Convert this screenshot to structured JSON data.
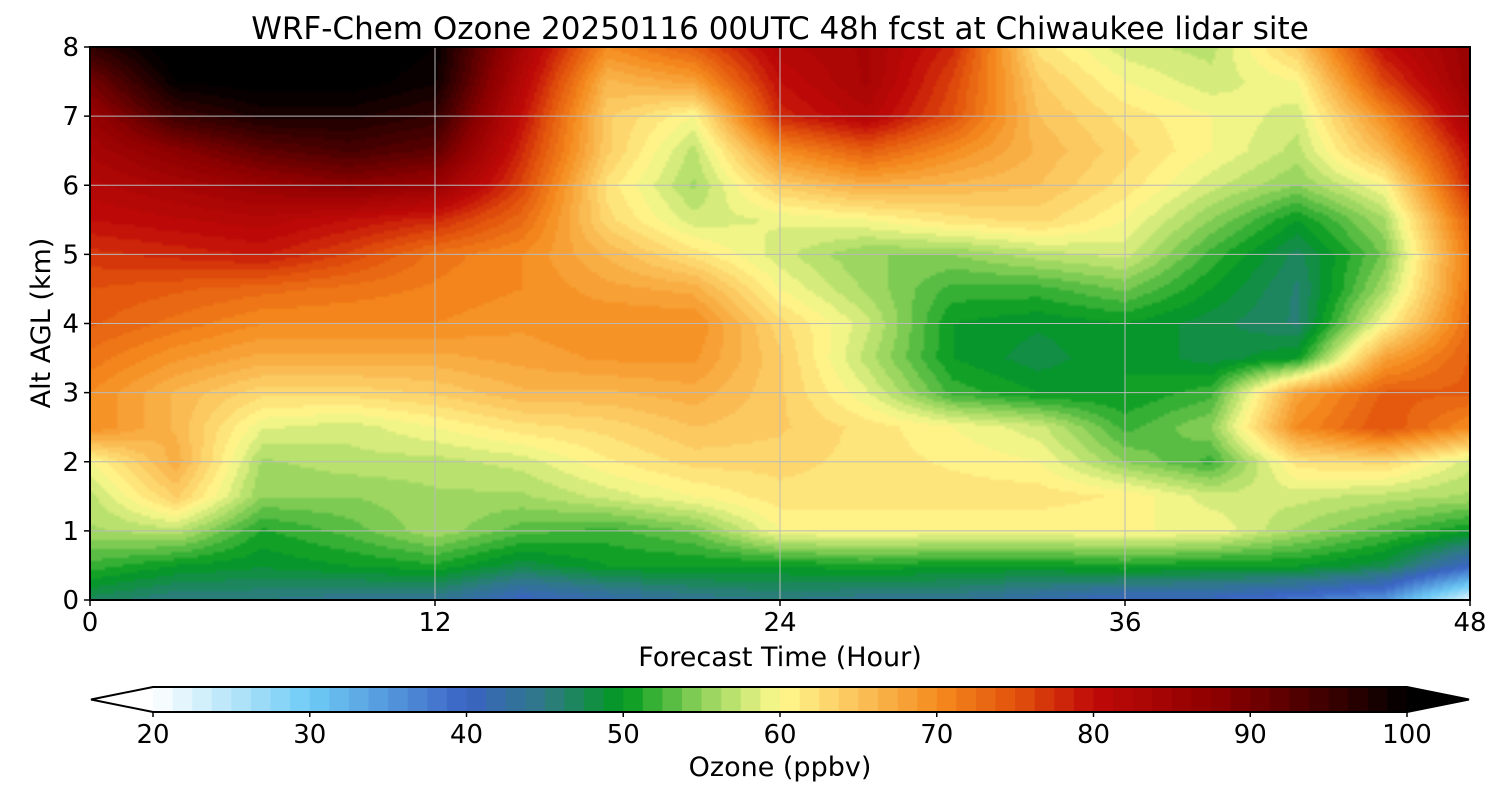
{
  "chart_data": {
    "type": "heatmap",
    "title": "WRF-Chem Ozone  20250116 00UTC 48h fcst at Chiwaukee lidar site",
    "xlabel": "Forecast Time (Hour)",
    "ylabel": "Alt AGL (km)",
    "xlim": [
      0,
      48
    ],
    "ylim": [
      0,
      8
    ],
    "xticks": [
      0,
      12,
      24,
      36,
      48
    ],
    "yticks": [
      0,
      1,
      2,
      3,
      4,
      5,
      6,
      7,
      8
    ],
    "grid": true,
    "x": [
      0,
      3,
      6,
      9,
      12,
      15,
      18,
      21,
      24,
      27,
      30,
      33,
      36,
      39,
      42,
      45,
      48
    ],
    "y": [
      0,
      0.5,
      1,
      1.5,
      2,
      2.5,
      3,
      3.5,
      4,
      4.5,
      5,
      5.5,
      6,
      6.5,
      7,
      7.5,
      8
    ],
    "values": [
      [
        47,
        45,
        45,
        44,
        44,
        40,
        42,
        44,
        45,
        44,
        44,
        42,
        40,
        40,
        38,
        35,
        22
      ],
      [
        52,
        50,
        49,
        50,
        51,
        48,
        50,
        50,
        50,
        51,
        50,
        50,
        51,
        50,
        50,
        48,
        40
      ],
      [
        56,
        57,
        51,
        53,
        56,
        53,
        52,
        54,
        60,
        60,
        60,
        60,
        60,
        60,
        56,
        53,
        50
      ],
      [
        57,
        64,
        55,
        55,
        56,
        56,
        58,
        60,
        62,
        62,
        62,
        62,
        61,
        58,
        58,
        57,
        56
      ],
      [
        60,
        67,
        56,
        57,
        57,
        58,
        61,
        63,
        63,
        62,
        61,
        60,
        55,
        52,
        62,
        63,
        58
      ],
      [
        70,
        66,
        59,
        58,
        60,
        62,
        63,
        65,
        64,
        62,
        60,
        58,
        52,
        55,
        70,
        75,
        70
      ],
      [
        70,
        66,
        63,
        63,
        64,
        66,
        66,
        67,
        64,
        59,
        52,
        50,
        50,
        52,
        68,
        74,
        74
      ],
      [
        72,
        69,
        67,
        67,
        67,
        68,
        69,
        69,
        64,
        57,
        50,
        48,
        50,
        48,
        50,
        68,
        74
      ],
      [
        74,
        72,
        70,
        70,
        70,
        69,
        70,
        70,
        63,
        58,
        50,
        49,
        50,
        48,
        46,
        60,
        73
      ],
      [
        75,
        74,
        73,
        72,
        71,
        70,
        68,
        67,
        60,
        56,
        52,
        52,
        54,
        50,
        46,
        56,
        72
      ],
      [
        77,
        78,
        79,
        76,
        72,
        70,
        66,
        62,
        58,
        55,
        55,
        57,
        58,
        52,
        47,
        54,
        72
      ],
      [
        80,
        81,
        82,
        80,
        78,
        73,
        63,
        58,
        59,
        60,
        62,
        63,
        60,
        55,
        50,
        56,
        74
      ],
      [
        82,
        84,
        86,
        88,
        86,
        76,
        62,
        56,
        64,
        67,
        66,
        65,
        62,
        58,
        55,
        60,
        78
      ],
      [
        84,
        88,
        92,
        94,
        92,
        78,
        64,
        57,
        70,
        74,
        70,
        66,
        63,
        60,
        57,
        66,
        80
      ],
      [
        86,
        95,
        98,
        98,
        96,
        80,
        64,
        60,
        78,
        82,
        75,
        65,
        62,
        60,
        58,
        70,
        84
      ],
      [
        90,
        100,
        101,
        101,
        99,
        82,
        66,
        68,
        80,
        84,
        76,
        64,
        60,
        58,
        60,
        76,
        86
      ],
      [
        96,
        102,
        102,
        102,
        100,
        84,
        70,
        74,
        82,
        84,
        78,
        62,
        58,
        57,
        64,
        80,
        86
      ]
    ],
    "colorbar": {
      "label": "Ozone  (ppbv)",
      "min": 20,
      "max": 100,
      "ticks": [
        20,
        30,
        40,
        50,
        60,
        70,
        80,
        90,
        100
      ],
      "extend": "both",
      "colors": [
        {
          "v": 20,
          "c": "#ffffff"
        },
        {
          "v": 30,
          "c": "#6ecbf5"
        },
        {
          "v": 40,
          "c": "#3a63c4"
        },
        {
          "v": 45,
          "c": "#2f7a85"
        },
        {
          "v": 50,
          "c": "#009a1f"
        },
        {
          "v": 55,
          "c": "#8fd25a"
        },
        {
          "v": 60,
          "c": "#fffa8f"
        },
        {
          "v": 65,
          "c": "#fbc25a"
        },
        {
          "v": 70,
          "c": "#f58c1e"
        },
        {
          "v": 75,
          "c": "#e2520c"
        },
        {
          "v": 80,
          "c": "#c00a08"
        },
        {
          "v": 88,
          "c": "#8c0000"
        },
        {
          "v": 95,
          "c": "#3c0000"
        },
        {
          "v": 100,
          "c": "#000000"
        }
      ]
    }
  }
}
